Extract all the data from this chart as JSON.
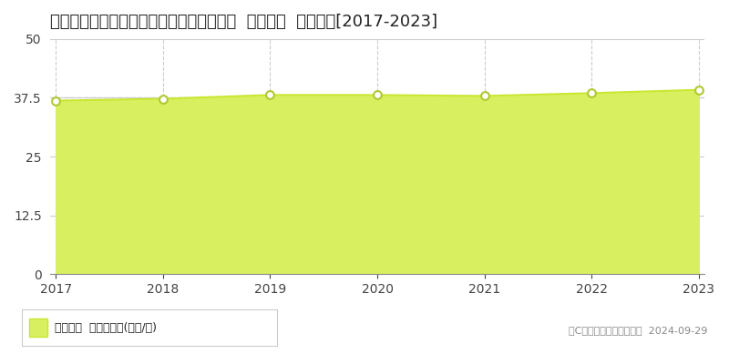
{
  "title": "愛知県春日井市如意申町４丁目２３番１９  基準地価  地価推移[2017-2023]",
  "years": [
    2017,
    2018,
    2019,
    2020,
    2021,
    2022,
    2023
  ],
  "values": [
    36.9,
    37.3,
    38.1,
    38.1,
    37.9,
    38.5,
    39.2
  ],
  "line_color": "#c8e832",
  "fill_color": "#d8f060",
  "marker_color": "#ffffff",
  "marker_edge_color": "#b0c830",
  "background_color": "#ffffff",
  "plot_bg_color": "#ffffff",
  "ylim": [
    0,
    50
  ],
  "yticks": [
    0,
    12.5,
    25,
    37.5,
    50
  ],
  "grid_color": "#cccccc",
  "title_fontsize": 13,
  "legend_label": "基準地価  平均坪単価(万円/坪)",
  "copyright_text": "（C）土地価格ドットコム  2024-09-29"
}
